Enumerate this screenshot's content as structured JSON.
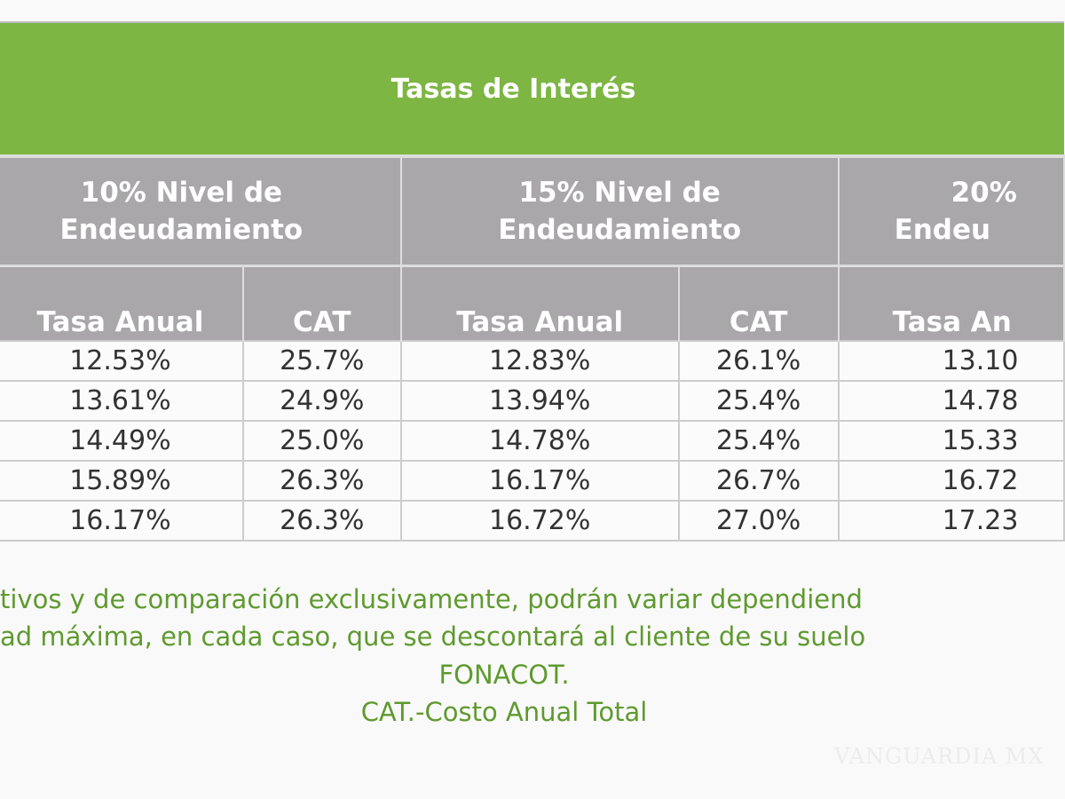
{
  "title": "Tasas de Interés",
  "groups": [
    {
      "label_line1": "10% Nivel de",
      "label_line2": "Endeudamiento"
    },
    {
      "label_line1": "15% Nivel de",
      "label_line2": "Endeudamiento"
    },
    {
      "label_line1": "20%",
      "label_line2": "Endeu"
    }
  ],
  "columns": [
    "Tasa Anual",
    "CAT",
    "Tasa Anual",
    "CAT",
    "Tasa An"
  ],
  "rows": [
    [
      "12.53%",
      "25.7%",
      "12.83%",
      "26.1%",
      "13.10"
    ],
    [
      "13.61%",
      "24.9%",
      "13.94%",
      "25.4%",
      "14.78"
    ],
    [
      "14.49%",
      "25.0%",
      "14.78%",
      "25.4%",
      "15.33"
    ],
    [
      "15.89%",
      "26.3%",
      "16.17%",
      "26.7%",
      "16.72"
    ],
    [
      "16.17%",
      "26.3%",
      "16.72%",
      "27.0%",
      "17.23"
    ]
  ],
  "footer": {
    "line1": "tivos y de comparación exclusivamente, podrán variar dependiend",
    "line2": "ad máxima, en cada caso, que se descontará al cliente de su suelo",
    "line3": "FONACOT.",
    "line4": "CAT.-Costo Anual Total"
  },
  "watermark": "VANGUARDIA MX",
  "colors": {
    "header_green": "#7db643",
    "header_gray": "#a9a7aa",
    "footer_text": "#5f9a2f"
  }
}
